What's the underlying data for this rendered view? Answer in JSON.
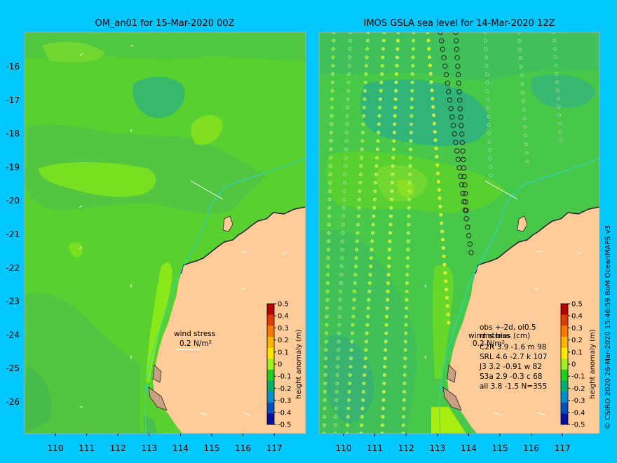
{
  "left_panel": {
    "title": "OM_an01 for 15-Mar-2020 00Z",
    "wind_stress_label": "wind stress",
    "wind_stress_value": "0.2 N/m²"
  },
  "right_panel": {
    "title": "IMOS GSLA sea level  for 14-Mar-2020 12Z",
    "wind_stress_label": "wind stress",
    "wind_stress_value": "0.2 N/m²",
    "stats_table": [
      "obs +-2d, oi0.5",
      "rms bias (cm)",
      "C2R   3.9 -1.6 m 98",
      "SRL   4.6 -2.7 k 107",
      "J3    3.2 -0.91 w 82",
      "S3a   2.9 -0.3 c 68",
      "all   3.8 -1.5 N=355"
    ]
  },
  "axes": {
    "x_ticks": [
      "110",
      "111",
      "112",
      "113",
      "114",
      "115",
      "116",
      "117"
    ],
    "y_ticks": [
      "-16",
      "-17",
      "-18",
      "-19",
      "-20",
      "-21",
      "-22",
      "-23",
      "-24",
      "-25",
      "-26"
    ]
  },
  "colorbar": {
    "label": "height anomaly (m)",
    "ticks": [
      "0.5",
      "0.4",
      "0.3",
      "0.2",
      "0.1",
      "0",
      "-0.1",
      "-0.2",
      "-0.3",
      "-0.4",
      "-0.5"
    ],
    "colors": [
      "#b40000",
      "#e03c00",
      "#ff7800",
      "#ffb400",
      "#ffe600",
      "#a0f020",
      "#20d020",
      "#00b070",
      "#0090d0",
      "#0050c0",
      "#0010a0"
    ]
  },
  "credit": "© CSIRO 2020   26-Mar-2020 15:46:59 BoM OceanMAPS v3"
}
